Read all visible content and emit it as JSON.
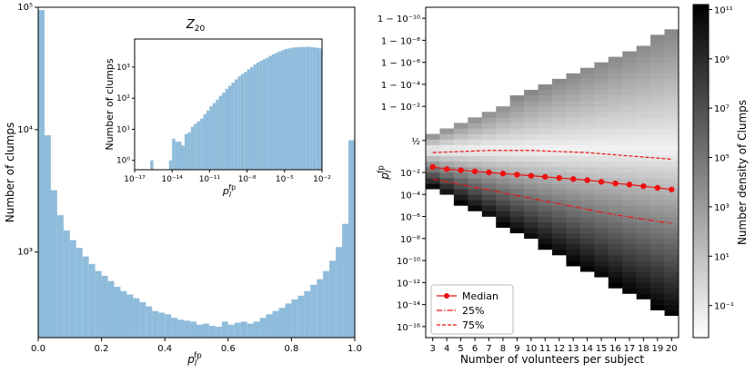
{
  "chart_data": [
    {
      "type": "bar",
      "panel": "left-histogram",
      "title": "",
      "xlabel": "p_l^fp",
      "ylabel": "Number of clumps",
      "xlim": [
        0,
        1
      ],
      "ylim": [
        200,
        100000
      ],
      "yscale": "log",
      "bar_color": "#8fbcdb",
      "xticks": [
        "0.0",
        "0.2",
        "0.4",
        "0.6",
        "0.8",
        "1.0"
      ],
      "yticks": [
        {
          "v": 1000,
          "label": "10³"
        },
        {
          "v": 10000,
          "label": "10⁴"
        },
        {
          "v": 100000,
          "label": "10⁵"
        }
      ],
      "bin_width": 0.02,
      "values": [
        95000,
        9000,
        3200,
        2000,
        1500,
        1250,
        1080,
        920,
        800,
        700,
        640,
        580,
        520,
        480,
        450,
        420,
        390,
        360,
        330,
        320,
        310,
        290,
        280,
        275,
        270,
        255,
        260,
        250,
        245,
        270,
        255,
        265,
        270,
        260,
        270,
        290,
        310,
        330,
        350,
        380,
        410,
        440,
        480,
        540,
        600,
        700,
        850,
        1100,
        1700,
        8200
      ]
    },
    {
      "type": "bar",
      "panel": "inset-histogram",
      "title": "Z_20",
      "xlabel": "p_l^fp",
      "ylabel": "Number of clumps",
      "xscale": "log",
      "yscale": "log",
      "xlim": [
        -17,
        -2
      ],
      "ylim": [
        0.5,
        8000
      ],
      "xticks": [
        {
          "v": -17,
          "label": "10⁻¹⁷"
        },
        {
          "v": -14,
          "label": "10⁻¹⁴"
        },
        {
          "v": -11,
          "label": "10⁻¹¹"
        },
        {
          "v": -8,
          "label": "10⁻⁸"
        },
        {
          "v": -5,
          "label": "10⁻⁵"
        },
        {
          "v": -2,
          "label": "10⁻²"
        }
      ],
      "yticks": [
        {
          "v": 1,
          "label": "10⁰"
        },
        {
          "v": 10,
          "label": "10¹"
        },
        {
          "v": 100,
          "label": "10²"
        },
        {
          "v": 1000,
          "label": "10³"
        }
      ],
      "bin_start_log10": -17,
      "bin_width_log10": 0.25,
      "values": [
        0,
        0,
        0,
        0,
        0,
        1,
        0,
        0,
        0,
        0,
        0,
        1,
        5,
        4,
        4,
        3,
        7,
        8,
        12,
        15,
        18,
        22,
        30,
        40,
        55,
        70,
        90,
        120,
        150,
        200,
        250,
        320,
        400,
        500,
        600,
        700,
        850,
        1000,
        1200,
        1400,
        1600,
        1800,
        2000,
        2300,
        2600,
        2900,
        3200,
        3500,
        3800,
        4000,
        4200,
        4300,
        4400,
        4450,
        4450,
        4500,
        4400,
        4300,
        4200,
        4000
      ]
    },
    {
      "type": "heatmap",
      "panel": "right-2d-histogram",
      "xlabel": "Number of volunteers per subject",
      "ylabel": "p_l^fp",
      "x": [
        3,
        4,
        5,
        6,
        7,
        8,
        9,
        10,
        11,
        12,
        13,
        14,
        15,
        16,
        17,
        18,
        19,
        20
      ],
      "colorbar_label": "Number density of Clumps",
      "colorbar_scale": "log",
      "colorbar_ticks": [
        {
          "v": -1,
          "label": "10⁻¹"
        },
        {
          "v": 1,
          "label": "10¹"
        },
        {
          "v": 3,
          "label": "10³"
        },
        {
          "v": 5,
          "label": "10⁵"
        },
        {
          "v": 7,
          "label": "10⁷"
        },
        {
          "v": 9,
          "label": "10⁹"
        },
        {
          "v": 11,
          "label": "10¹¹"
        }
      ],
      "y_ticks": [
        {
          "v": -16,
          "label": "10⁻¹⁶"
        },
        {
          "v": -14,
          "label": "10⁻¹⁴"
        },
        {
          "v": -12,
          "label": "10⁻¹²"
        },
        {
          "v": -10,
          "label": "10⁻¹⁰"
        },
        {
          "v": -8,
          "label": "10⁻⁸"
        },
        {
          "v": -6,
          "label": "10⁻⁶"
        },
        {
          "v": -4,
          "label": "10⁻⁴"
        },
        {
          "v": -2,
          "label": "10⁻²"
        },
        {
          "v": 0.9,
          "label": "½"
        },
        {
          "v": 4,
          "label": "1 − 10⁻²"
        },
        {
          "v": 6,
          "label": "1 − 10⁻⁴"
        },
        {
          "v": 8,
          "label": "1 − 10⁻⁶"
        },
        {
          "v": 10,
          "label": "1 − 10⁻⁸"
        },
        {
          "v": 12,
          "label": "1 − 10⁻¹⁰"
        }
      ],
      "series": [
        {
          "name": "Median",
          "color": "#ee1111",
          "style": "solid-marker",
          "values": [
            -1.5,
            -1.7,
            -1.8,
            -1.9,
            -2.0,
            -2.1,
            -2.2,
            -2.3,
            -2.4,
            -2.5,
            -2.6,
            -2.7,
            -2.85,
            -3.0,
            -3.1,
            -3.25,
            -3.4,
            -3.55
          ]
        },
        {
          "name": "25%",
          "color": "#ee1111",
          "style": "dashdot",
          "values": [
            -2.6,
            -2.85,
            -3.1,
            -3.35,
            -3.6,
            -3.85,
            -4.1,
            -4.35,
            -4.6,
            -4.85,
            -5.1,
            -5.35,
            -5.6,
            -5.85,
            -6.05,
            -6.25,
            -6.45,
            -6.6
          ]
        },
        {
          "name": "75%",
          "color": "#ee1111",
          "style": "dashed",
          "values": [
            -0.2,
            -0.15,
            -0.1,
            -0.05,
            0.0,
            0.0,
            0.0,
            0.0,
            -0.05,
            -0.1,
            -0.15,
            -0.2,
            -0.3,
            -0.4,
            -0.5,
            -0.6,
            -0.7,
            -0.8
          ]
        }
      ]
    }
  ]
}
